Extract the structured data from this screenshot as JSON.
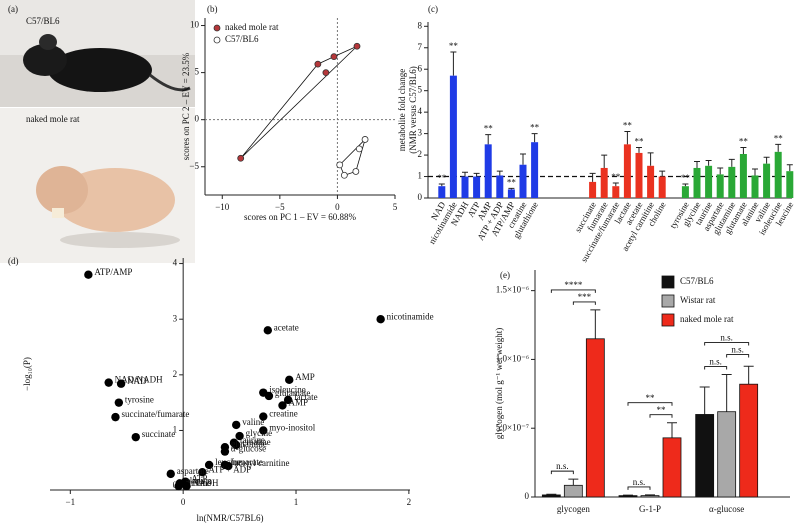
{
  "panel_a": {
    "label": "(a)",
    "photo_labels": [
      "C57/BL6",
      "naked mole rat"
    ]
  },
  "chart_data": [
    {
      "type": "scatter",
      "panel_label": "(b)",
      "xlabel": "scores on PC 1 – EV = 60.88%",
      "ylabel": "scores on PC 2 – EV = 23.5%",
      "xlim": [
        -11.5,
        5
      ],
      "ylim": [
        -8,
        10.8
      ],
      "xticks": [
        {
          "value": -10,
          "label": "−10"
        },
        {
          "value": -5,
          "label": "−5"
        },
        0,
        5
      ],
      "yticks": [
        {
          "value": -5,
          "label": "−5"
        },
        0,
        5,
        10
      ],
      "zero_lines": true,
      "hull": true,
      "legend": "upper left",
      "series": [
        {
          "name": "naked mole rat",
          "color": "#b5373a",
          "x": [
            -8.4,
            -1.7,
            -1.0,
            -0.3,
            1.7
          ],
          "values": [
            -4.1,
            5.9,
            5.0,
            6.7,
            7.8
          ]
        },
        {
          "name": "C57/BL6",
          "color": "#ffffff",
          "x": [
            2.4,
            1.9,
            1.6,
            0.6,
            0.2
          ],
          "values": [
            -2.1,
            -3.1,
            -5.5,
            -5.9,
            -4.8
          ]
        }
      ]
    },
    {
      "type": "bar",
      "panel_label": "(c)",
      "ylabel": [
        "metabolite fold change",
        "(NMR versus C57/BL6)"
      ],
      "ylim": [
        0,
        8.2
      ],
      "yticks": [
        0,
        1,
        2,
        3,
        4,
        5,
        6,
        7,
        8
      ],
      "reference_line": 1,
      "series": [
        {
          "color": "#1f3be6",
          "categories": [
            "NAD",
            "nicotinamide",
            "NADH",
            "ATP",
            "AMP",
            "ATP + ADP",
            "ATP/AMP",
            "creatine",
            "glutathione"
          ],
          "values": [
            0.55,
            5.7,
            1.0,
            1.0,
            2.5,
            1.05,
            0.4,
            1.55,
            2.6
          ],
          "errors": [
            0.1,
            1.1,
            0.2,
            0.15,
            0.45,
            0.2,
            0.05,
            0.5,
            0.4
          ],
          "labels": [
            "**",
            "**",
            null,
            null,
            "**",
            null,
            "**",
            null,
            "**"
          ]
        },
        {
          "color": "#ea3220",
          "categories": [
            "succinate",
            "fumarate",
            "succinate/fumarate",
            "lactate",
            "acetate",
            "acetyl carnitine",
            "choline"
          ],
          "values": [
            0.75,
            1.4,
            0.55,
            2.5,
            2.1,
            1.5,
            1.0
          ],
          "errors": [
            0.4,
            0.6,
            0.15,
            0.6,
            0.25,
            0.6,
            0.25
          ],
          "labels": [
            null,
            null,
            "**",
            "**",
            "**",
            null,
            null
          ]
        },
        {
          "color": "#2aa836",
          "categories": [
            "tyrosine",
            "glycine",
            "taurine",
            "aspartate",
            "glutamine",
            "glutamate",
            "alanine",
            "valine",
            "isoleucine",
            "leucine"
          ],
          "values": [
            0.55,
            1.4,
            1.5,
            1.1,
            1.45,
            2.05,
            1.05,
            1.6,
            2.15,
            1.25
          ],
          "errors": [
            0.1,
            0.3,
            0.25,
            0.3,
            0.35,
            0.3,
            0.3,
            0.3,
            0.35,
            0.3
          ],
          "labels": [
            "**",
            null,
            null,
            null,
            null,
            "**",
            null,
            null,
            "**",
            null
          ]
        }
      ]
    },
    {
      "type": "scatter",
      "panel_label": "(d)",
      "xlabel": "ln(NMR/C57BL6)",
      "ylabel": "−log₁₀(P)",
      "xlim": [
        -1.18,
        2.01
      ],
      "ylim": [
        -0.07,
        4.1
      ],
      "xticks": [
        {
          "value": -1,
          "label": "−1"
        },
        0,
        1,
        2
      ],
      "yticks": [
        0,
        1,
        2,
        3,
        4
      ],
      "color": "#000000",
      "labels": [
        "ATP/AMP",
        "nicotinamide",
        "acetate",
        "AMP",
        "NAD/NADH",
        "NAD",
        "isoleucine",
        "glutamate",
        "lactate",
        "AMP",
        "tyrosine",
        "succinate/fumarate",
        "creatine",
        "valine",
        "myo-inositol",
        "glycine",
        "succinate",
        "taurine",
        "creatine",
        "glutamine",
        "α-glucose",
        "leucine",
        "fumarate",
        "acetyl carnitine",
        "ATP + ADP",
        "aspartate",
        "ATP",
        "alanine",
        "choline",
        "NADH"
      ],
      "x": [
        -0.84,
        1.75,
        0.75,
        0.94,
        -0.66,
        -0.55,
        0.71,
        0.76,
        0.93,
        0.88,
        -0.57,
        -0.6,
        0.71,
        0.47,
        0.71,
        0.5,
        -0.42,
        0.45,
        0.47,
        0.37,
        0.37,
        0.23,
        0.37,
        0.4,
        0.17,
        -0.11,
        0.02,
        -0.03,
        -0.04,
        0.03
      ],
      "values": [
        3.8,
        3.0,
        2.8,
        1.91,
        1.86,
        1.84,
        1.68,
        1.62,
        1.55,
        1.45,
        1.5,
        1.24,
        1.25,
        1.1,
        1.0,
        0.9,
        0.88,
        0.78,
        0.74,
        0.7,
        0.62,
        0.38,
        0.38,
        0.36,
        0.25,
        0.22,
        0.08,
        0.05,
        0.0,
        0.0
      ]
    },
    {
      "type": "bar",
      "panel_label": "(e)",
      "ylabel": "glycogen (mol g⁻¹ wet weight)",
      "categories": [
        "glycogen",
        "G-1-P",
        "α-glucose"
      ],
      "ylim": [
        0,
        1.65e-06
      ],
      "yticks": [
        0,
        {
          "value": 5e-07,
          "label": "5.0×10⁻⁷"
        },
        {
          "value": 1e-06,
          "label": "1.0×10⁻⁶"
        },
        {
          "value": 1.5e-06,
          "label": "1.5×10⁻⁶"
        }
      ],
      "legend": "upper right",
      "series": [
        {
          "name": "C57/BL6",
          "color": "#111111",
          "values": [
            1.5e-08,
            1e-08,
            6e-07
          ],
          "errors": [
            5e-09,
            4e-09,
            2e-07
          ]
        },
        {
          "name": "Wistar rat",
          "color": "#a8a8a8",
          "values": [
            8.5e-08,
            1e-08,
            6.2e-07
          ],
          "errors": [
            4.5e-08,
            5e-09,
            2.7e-07
          ]
        },
        {
          "name": "naked mole rat",
          "color": "#ee2a1b",
          "values": [
            1.15e-06,
            4.3e-07,
            8.2e-07
          ],
          "errors": [
            2.1e-07,
            1.1e-07,
            1.3e-07
          ]
        }
      ],
      "brackets": [
        {
          "group": 0,
          "from": 0,
          "to": 1,
          "label": "n.s."
        },
        {
          "group": 0,
          "from": 1,
          "to": 2,
          "label": "***"
        },
        {
          "group": 0,
          "from": 0,
          "to": 2,
          "label": "****"
        },
        {
          "group": 1,
          "from": 0,
          "to": 1,
          "label": "n.s."
        },
        {
          "group": 1,
          "from": 1,
          "to": 2,
          "label": "**"
        },
        {
          "group": 1,
          "from": 0,
          "to": 2,
          "label": "**"
        },
        {
          "group": 2,
          "from": 0,
          "to": 1,
          "label": "n.s."
        },
        {
          "group": 2,
          "from": 1,
          "to": 2,
          "label": "n.s."
        },
        {
          "group": 2,
          "from": 0,
          "to": 2,
          "label": "n.s."
        }
      ]
    }
  ]
}
